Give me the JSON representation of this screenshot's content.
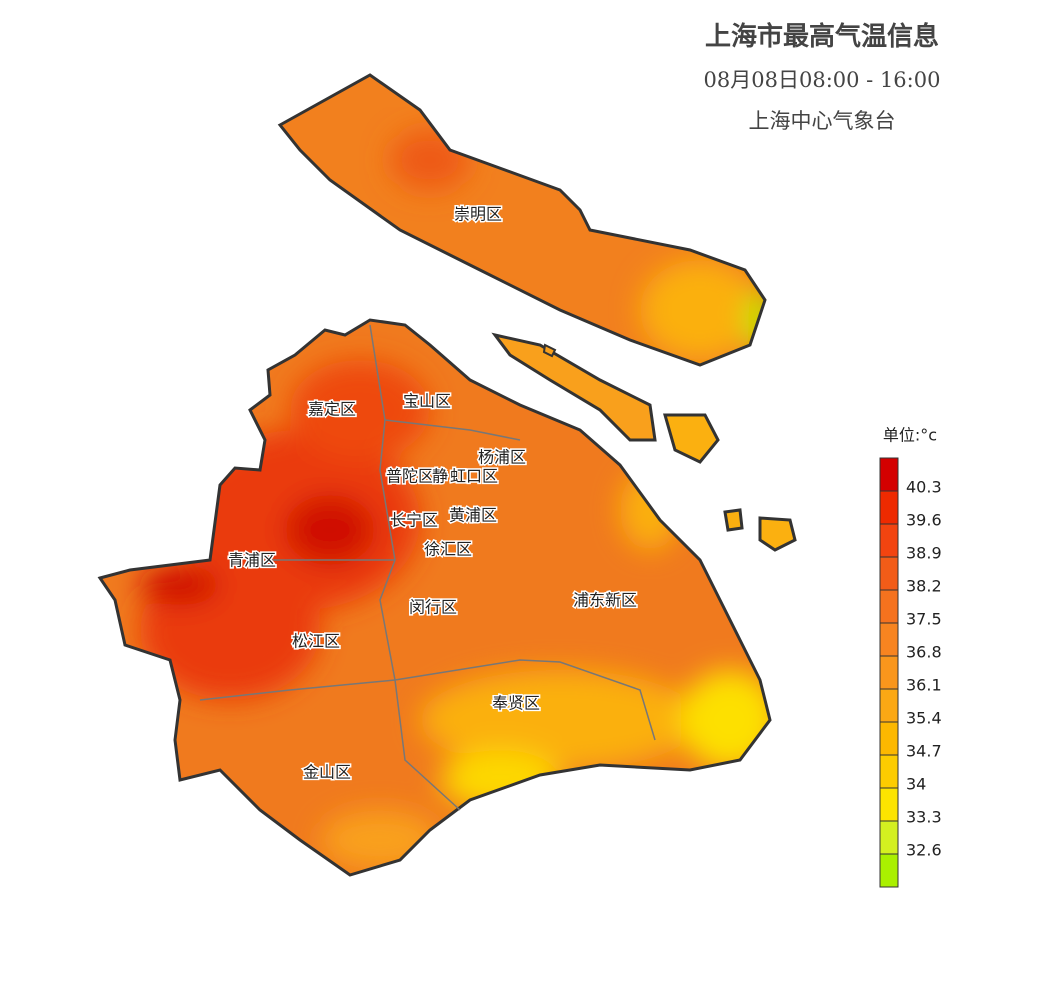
{
  "header": {
    "title": "上海市最高气温信息",
    "time": "08月08日08:00 - 16:00",
    "source": "上海中心气象台"
  },
  "districts": [
    {
      "label": "崇明区"
    },
    {
      "label": "嘉定区"
    },
    {
      "label": "宝山区"
    },
    {
      "label": "杨浦区"
    },
    {
      "label": "普陀区"
    },
    {
      "label": "静"
    },
    {
      "label": "虹口区"
    },
    {
      "label": "长宁区"
    },
    {
      "label": "黄浦区"
    },
    {
      "label": "徐汇区"
    },
    {
      "label": "青浦区"
    },
    {
      "label": "闵行区"
    },
    {
      "label": "浦东新区"
    },
    {
      "label": "松江区"
    },
    {
      "label": "奉贤区"
    },
    {
      "label": "金山区"
    }
  ],
  "legend": {
    "unit": "单位:°c",
    "ticks": [
      40.3,
      39.6,
      38.9,
      38.2,
      37.5,
      36.8,
      36.1,
      35.4,
      34.7,
      34.0,
      33.3,
      32.6
    ],
    "colors": [
      "#d40000",
      "#ee2a00",
      "#f24410",
      "#f25c18",
      "#f5721e",
      "#f78420",
      "#f9961c",
      "#fba814",
      "#fcb800",
      "#fdcc00",
      "#fde400",
      "#d4f020",
      "#aaf000"
    ]
  }
}
